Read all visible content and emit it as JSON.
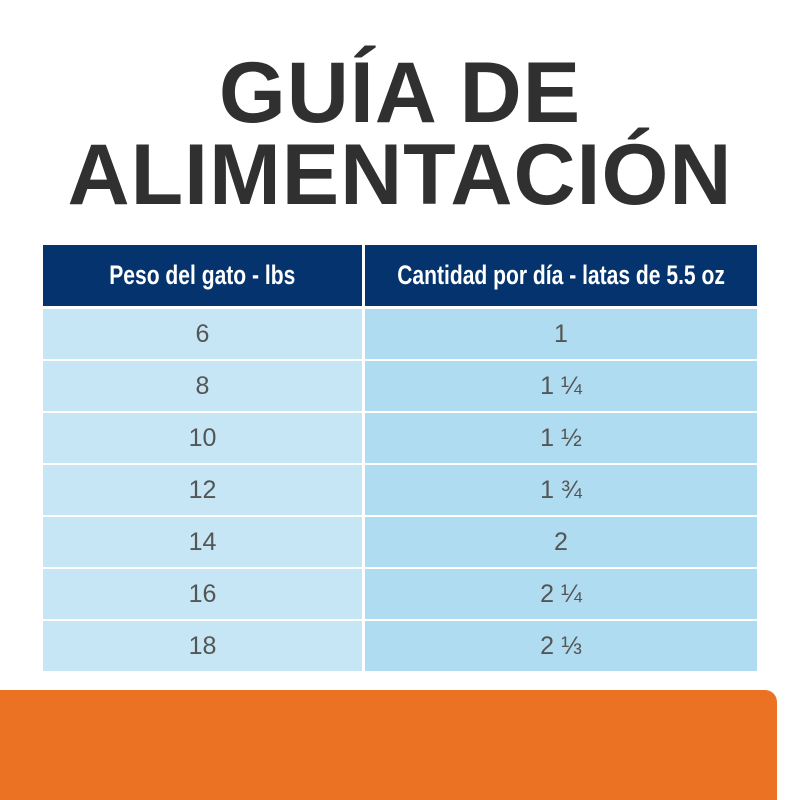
{
  "title": {
    "line1": "GUÍA DE",
    "line2": "ALIMENTACIÓN"
  },
  "table": {
    "headers": [
      "Peso del gato - lbs",
      "Cantidad por día - latas de 5.5 oz"
    ],
    "rows": [
      [
        "6",
        "1"
      ],
      [
        "8",
        "1 ¼"
      ],
      [
        "10",
        "1 ½"
      ],
      [
        "12",
        "1 ¾"
      ],
      [
        "14",
        "2"
      ],
      [
        "16",
        "2 ¼"
      ],
      [
        "18",
        "2 ⅓"
      ]
    ]
  },
  "colors": {
    "header": "#04336e",
    "left_column": "#c6e6f5",
    "right_column": "#afdcf0",
    "banner": "#ec7223",
    "title": "#303030"
  }
}
